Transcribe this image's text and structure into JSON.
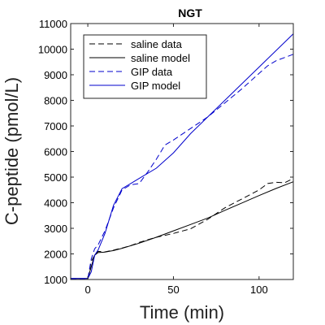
{
  "chart_data": {
    "type": "line",
    "title": "NGT",
    "xlabel": "Time (min)",
    "ylabel": "C-peptide (pmol/L)",
    "xlim": [
      -10,
      120
    ],
    "ylim": [
      1000,
      11000
    ],
    "xticks": [
      0,
      50,
      100
    ],
    "yticks": [
      1000,
      2000,
      3000,
      4000,
      5000,
      6000,
      7000,
      8000,
      9000,
      10000,
      11000
    ],
    "grid": false,
    "legend_position": "top-left",
    "series": [
      {
        "name": "saline data",
        "color": "#000000",
        "dash": "dashed",
        "x": [
          -10,
          0,
          2,
          4,
          6,
          10,
          15,
          20,
          25,
          30,
          40,
          50,
          60,
          70,
          80,
          90,
          100,
          105,
          110,
          115,
          120
        ],
        "y": [
          1030,
          1020,
          1700,
          1950,
          2100,
          2080,
          2150,
          2230,
          2320,
          2450,
          2650,
          2800,
          2980,
          3350,
          3800,
          4150,
          4500,
          4750,
          4800,
          4780,
          4950
        ]
      },
      {
        "name": "saline model",
        "color": "#000000",
        "dash": "solid",
        "x": [
          -10,
          0,
          2,
          4,
          6,
          10,
          15,
          20,
          30,
          40,
          50,
          60,
          70,
          80,
          90,
          100,
          110,
          120
        ],
        "y": [
          1040,
          1040,
          1500,
          1950,
          2050,
          2070,
          2130,
          2220,
          2420,
          2650,
          2900,
          3150,
          3400,
          3700,
          3990,
          4280,
          4560,
          4820
        ]
      },
      {
        "name": "GIP data",
        "color": "#0000cc",
        "dash": "dashed",
        "x": [
          -10,
          0,
          2,
          4,
          6,
          10,
          15,
          20,
          25,
          30,
          35,
          40,
          45,
          50,
          60,
          70,
          80,
          90,
          100,
          105,
          110,
          120
        ],
        "y": [
          1030,
          1030,
          1800,
          2200,
          2350,
          2900,
          3800,
          4500,
          4700,
          4750,
          5200,
          5700,
          6250,
          6450,
          6900,
          7350,
          7900,
          8450,
          9050,
          9350,
          9550,
          9800
        ]
      },
      {
        "name": "GIP model",
        "color": "#0000cc",
        "dash": "solid",
        "x": [
          -10,
          0,
          2,
          4,
          6,
          10,
          15,
          20,
          25,
          30,
          40,
          50,
          60,
          70,
          80,
          90,
          100,
          110,
          120
        ],
        "y": [
          1040,
          1040,
          1300,
          1950,
          2150,
          2800,
          3900,
          4550,
          4750,
          4950,
          5350,
          5950,
          6700,
          7350,
          8000,
          8650,
          9300,
          9950,
          10600
        ]
      }
    ]
  }
}
